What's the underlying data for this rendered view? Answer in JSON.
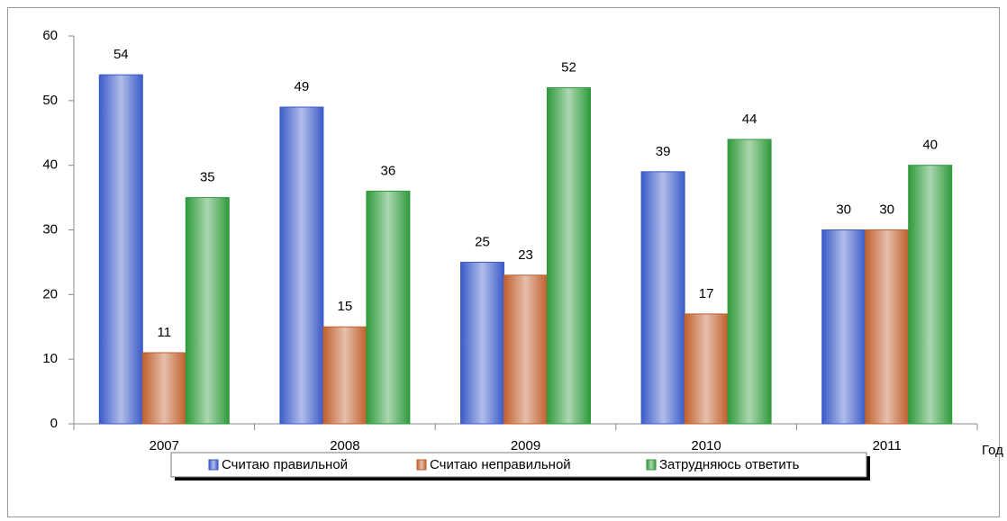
{
  "chart_data": {
    "type": "bar",
    "categories": [
      "2007",
      "2008",
      "2009",
      "2010",
      "2011"
    ],
    "x_label": "Год",
    "series": [
      {
        "name": "Считаю правильной",
        "color": "#3b5bc8",
        "values": [
          54,
          49,
          25,
          39,
          30
        ]
      },
      {
        "name": "Считаю неправильной",
        "color": "#c0602e",
        "values": [
          11,
          15,
          23,
          17,
          30
        ]
      },
      {
        "name": "Затрудняюсь ответить",
        "color": "#2f9a3c",
        "values": [
          35,
          36,
          52,
          44,
          40
        ]
      }
    ],
    "ylim": [
      0,
      60
    ],
    "yticks": [
      0,
      10,
      20,
      30,
      40,
      50,
      60
    ],
    "grid": false,
    "legend": "bottom"
  }
}
